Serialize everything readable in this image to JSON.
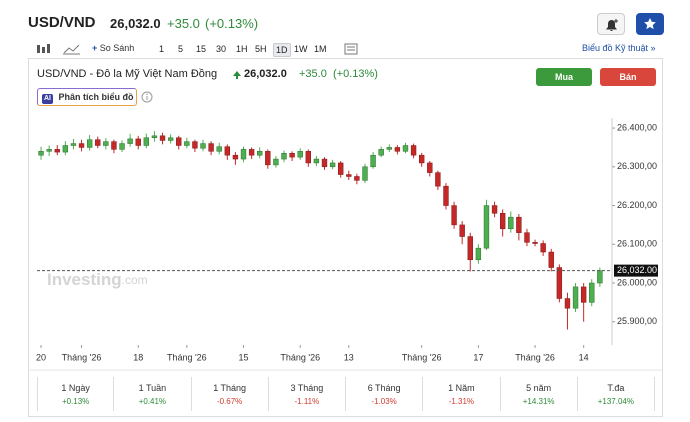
{
  "header": {
    "symbol": "USD/VND",
    "price": "26,032.0",
    "change": "+35.0",
    "change_pct": "(+0.13%)"
  },
  "toolbar": {
    "compare": "So Sánh",
    "intervals": [
      "1",
      "5",
      "15",
      "30",
      "1H",
      "5H",
      "1D",
      "1W",
      "1M"
    ],
    "active_interval": 6,
    "technical": "Biểu đồ Kỹ thuật"
  },
  "chart_info": {
    "name": "USD/VND - Đô la Mỹ Việt Nam Đồng",
    "price": "26,032.0",
    "change": "+35.0",
    "change_pct": "(+0.13%)",
    "buy": "Mua",
    "sell": "Bán",
    "analysis": "Phân tích biểu đồ",
    "ai_badge": "AI",
    "watermark_main": "Investing",
    "watermark_suffix": ".com"
  },
  "chart_data": {
    "type": "candlestick",
    "up_color": "#4caf50",
    "down_color": "#c62828",
    "open": [
      26330,
      26340,
      26345,
      26338,
      26355,
      26360,
      26350,
      26370,
      26355,
      26365,
      26345,
      26360,
      26372,
      26355,
      26375,
      26380,
      26368,
      26375,
      26355,
      26365,
      26348,
      26360,
      26340,
      26352,
      26330,
      26320,
      26345,
      26330,
      26340,
      26305,
      26320,
      26335,
      26325,
      26340,
      26310,
      26320,
      26300,
      26310,
      26280,
      26275,
      26265,
      26300,
      26330,
      26345,
      26350,
      26340,
      26355,
      26330,
      26310,
      26285,
      26250,
      26200,
      26150,
      26120,
      26060,
      26090,
      26200,
      26180,
      26140,
      26170,
      26130,
      26105,
      26102,
      26080,
      26040,
      25960,
      25935,
      25990,
      25950,
      26000
    ],
    "high": [
      26352,
      26355,
      26356,
      26366,
      26372,
      26370,
      26382,
      26378,
      26374,
      26370,
      26368,
      26385,
      26380,
      26386,
      26392,
      26388,
      26384,
      26380,
      26375,
      26370,
      26370,
      26366,
      26362,
      26358,
      26338,
      26352,
      26350,
      26350,
      26345,
      26328,
      26342,
      26340,
      26348,
      26345,
      26328,
      26325,
      26318,
      26315,
      26290,
      26282,
      26308,
      26338,
      26352,
      26358,
      26356,
      26362,
      26360,
      26336,
      26315,
      26290,
      26258,
      26210,
      26160,
      26130,
      26100,
      26215,
      26210,
      26190,
      26185,
      26178,
      26140,
      26112,
      26110,
      26088,
      26048,
      25975,
      26000,
      26000,
      26010,
      26040
    ],
    "low": [
      26318,
      26328,
      26330,
      26330,
      26345,
      26340,
      26342,
      26348,
      26345,
      26335,
      26338,
      26352,
      26345,
      26348,
      26365,
      26358,
      26360,
      26345,
      26348,
      26338,
      26340,
      26330,
      26332,
      26318,
      26305,
      26312,
      26320,
      26322,
      26295,
      26298,
      26312,
      26315,
      26318,
      26300,
      26302,
      26292,
      26294,
      26272,
      26266,
      26255,
      26258,
      26295,
      26325,
      26338,
      26332,
      26335,
      26322,
      26300,
      26275,
      26240,
      26190,
      26140,
      26100,
      26030,
      26050,
      26085,
      26170,
      26120,
      26130,
      26110,
      26095,
      26095,
      26070,
      26030,
      25950,
      25880,
      25925,
      25900,
      25940,
      25990
    ],
    "close": [
      26340,
      26345,
      26338,
      26355,
      26360,
      26350,
      26370,
      26355,
      26365,
      26345,
      26360,
      26372,
      26355,
      26375,
      26380,
      26368,
      26375,
      26355,
      26365,
      26348,
      26360,
      26340,
      26352,
      26330,
      26320,
      26345,
      26330,
      26340,
      26305,
      26320,
      26335,
      26325,
      26340,
      26310,
      26320,
      26300,
      26310,
      26280,
      26275,
      26265,
      26300,
      26330,
      26345,
      26350,
      26340,
      26355,
      26330,
      26310,
      26285,
      26250,
      26200,
      26150,
      26120,
      26060,
      26090,
      26200,
      26180,
      26140,
      26170,
      26130,
      26105,
      26102,
      26080,
      26040,
      25960,
      25935,
      25990,
      25950,
      26000,
      26032
    ],
    "xlim": [
      -0.5,
      70.5
    ],
    "xticks": [
      {
        "value": 0,
        "label": "20"
      },
      {
        "value": 5,
        "label": "Tháng '26"
      },
      {
        "value": 12,
        "label": "18"
      },
      {
        "value": 18,
        "label": "Tháng '26"
      },
      {
        "value": 25,
        "label": "15"
      },
      {
        "value": 32,
        "label": "Tháng '26"
      },
      {
        "value": 38,
        "label": "13"
      },
      {
        "value": 47,
        "label": "Tháng '26"
      },
      {
        "value": 54,
        "label": "17"
      },
      {
        "value": 61,
        "label": "Tháng '26"
      },
      {
        "value": 67,
        "label": "14"
      }
    ],
    "ylim": [
      25840,
      26426
    ],
    "yticks": [
      {
        "value": 25900,
        "label": "25.900,00"
      },
      {
        "value": 26000,
        "label": "26.000,00"
      },
      {
        "value": 26100,
        "label": "26.100,00"
      },
      {
        "value": 26200,
        "label": "26.200,00"
      },
      {
        "value": 26300,
        "label": "26.300,00"
      },
      {
        "value": 26400,
        "label": "26.400,00"
      }
    ],
    "last_price": {
      "value": 26032,
      "label": "26,032.00"
    }
  },
  "performance": [
    {
      "period": "1 Ngày",
      "change": "+0.13%"
    },
    {
      "period": "1 Tuần",
      "change": "+0.41%"
    },
    {
      "period": "1 Tháng",
      "change": "-0.67%"
    },
    {
      "period": "3 Tháng",
      "change": "-1.11%"
    },
    {
      "period": "6 Tháng",
      "change": "-1.03%"
    },
    {
      "period": "1 Năm",
      "change": "-1.31%"
    },
    {
      "period": "5 năm",
      "change": "+14.31%"
    },
    {
      "period": "T.đa",
      "change": "+137.04%"
    }
  ]
}
